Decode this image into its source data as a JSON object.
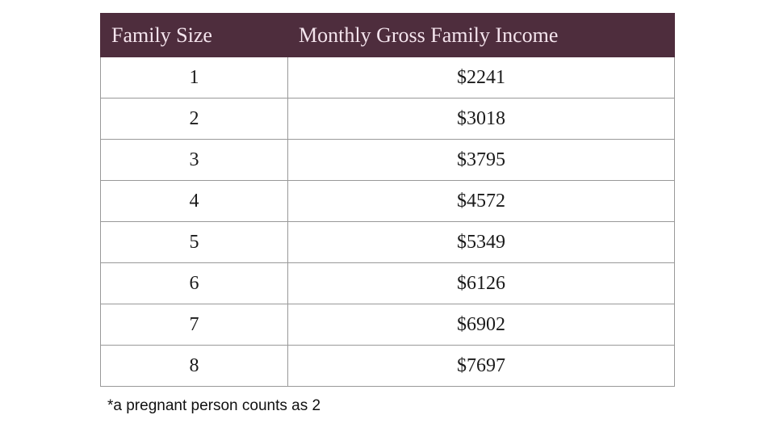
{
  "colors": {
    "header_background": "#4e2d3d",
    "header_text": "#f4e4ed",
    "cell_border": "#999999",
    "body_text": "#1a1a1a",
    "page_background": "#ffffff"
  },
  "table": {
    "headers": {
      "family_size": "Family Size",
      "income": "Monthly Gross Family Income"
    },
    "rows": [
      {
        "size": "1",
        "income": "$2241"
      },
      {
        "size": "2",
        "income": "$3018"
      },
      {
        "size": "3",
        "income": "$3795"
      },
      {
        "size": "4",
        "income": "$4572"
      },
      {
        "size": "5",
        "income": "$5349"
      },
      {
        "size": "6",
        "income": "$6126"
      },
      {
        "size": "7",
        "income": "$6902"
      },
      {
        "size": "8",
        "income": "$7697"
      }
    ]
  },
  "footnote": "*a pregnant person counts as 2"
}
